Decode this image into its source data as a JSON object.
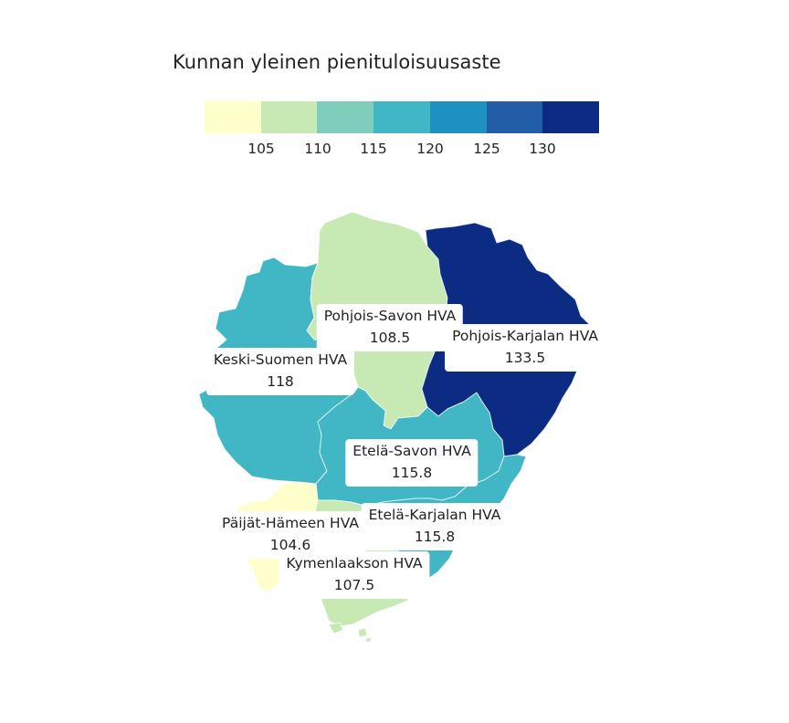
{
  "title": "Kunnan yleinen pienituloisuusaste",
  "legend": {
    "colors": [
      "#ffffcc",
      "#c7e9b4",
      "#7fcdbb",
      "#41b6c4",
      "#1d91c0",
      "#225ea8",
      "#0c2c84"
    ],
    "breaks": [
      100,
      105,
      110,
      115,
      120,
      125,
      130,
      135
    ],
    "ticks": [
      "105",
      "110",
      "115",
      "120",
      "125",
      "130"
    ]
  },
  "regions": [
    {
      "name": "Pohjois-Savon HVA",
      "value": "108.5",
      "color": "#c7e9b4"
    },
    {
      "name": "Pohjois-Karjalan HVA",
      "value": "133.5",
      "color": "#0c2c84"
    },
    {
      "name": "Keski-Suomen HVA",
      "value": "118",
      "color": "#41b6c4"
    },
    {
      "name": "Etelä-Savon HVA",
      "value": "115.8",
      "color": "#41b6c4"
    },
    {
      "name": "Etelä-Karjalan HVA",
      "value": "115.8",
      "color": "#41b6c4"
    },
    {
      "name": "Päijät-Hämeen HVA",
      "value": "104.6",
      "color": "#ffffcc"
    },
    {
      "name": "Kymenlaakson HVA",
      "value": "107.5",
      "color": "#c7e9b4"
    }
  ]
}
